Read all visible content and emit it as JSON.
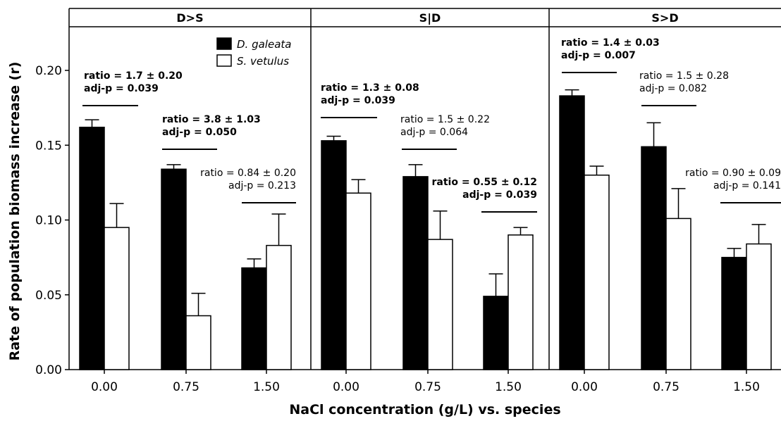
{
  "chart_data": {
    "type": "bar",
    "xlabel": "NaCl concentration (g/L) vs. species",
    "ylabel": "Rate of population biomass increase (r)",
    "ylim": [
      0,
      0.24
    ],
    "yticks": [
      "0.00",
      "0.05",
      "0.10",
      "0.15",
      "0.20"
    ],
    "ytick_values": [
      0,
      0.05,
      0.1,
      0.15,
      0.2
    ],
    "grid": false,
    "legend_position": "top-left of first panel",
    "series": [
      {
        "name": "D. galeata",
        "color": "#000000"
      },
      {
        "name": "S. vetulus",
        "color": "#ffffff"
      }
    ],
    "panels": [
      {
        "title": "D>S",
        "groups": [
          {
            "category": "0.00",
            "values": [
              0.162,
              0.095
            ],
            "errors": [
              0.005,
              0.016
            ],
            "ratio": "ratio = 1.7 ± 0.20",
            "pval": "adj-p = 0.039",
            "bold": true
          },
          {
            "category": "0.75",
            "values": [
              0.134,
              0.036
            ],
            "errors": [
              0.003,
              0.015
            ],
            "ratio": "ratio = 3.8 ± 1.03",
            "pval": "adj-p = 0.050",
            "bold": true
          },
          {
            "category": "1.50",
            "values": [
              0.068,
              0.083
            ],
            "errors": [
              0.006,
              0.021
            ],
            "ratio": "ratio = 0.84 ± 0.20",
            "pval": "adj-p = 0.213",
            "bold": false
          }
        ]
      },
      {
        "title": "S|D",
        "groups": [
          {
            "category": "0.00",
            "values": [
              0.153,
              0.118
            ],
            "errors": [
              0.003,
              0.009
            ],
            "ratio": "ratio = 1.3 ± 0.08",
            "pval": "adj-p = 0.039",
            "bold": true
          },
          {
            "category": "0.75",
            "values": [
              0.129,
              0.087
            ],
            "errors": [
              0.008,
              0.019
            ],
            "ratio": "ratio = 1.5 ± 0.22",
            "pval": "adj-p = 0.064",
            "bold": false
          },
          {
            "category": "1.50",
            "values": [
              0.049,
              0.09
            ],
            "errors": [
              0.015,
              0.005
            ],
            "ratio": "ratio = 0.55 ± 0.12",
            "pval": "adj-p = 0.039",
            "bold": true
          }
        ]
      },
      {
        "title": "S>D",
        "groups": [
          {
            "category": "0.00",
            "values": [
              0.183,
              0.13
            ],
            "errors": [
              0.004,
              0.006
            ],
            "ratio": "ratio = 1.4 ± 0.03",
            "pval": "adj-p = 0.007",
            "bold": true
          },
          {
            "category": "0.75",
            "values": [
              0.149,
              0.101
            ],
            "errors": [
              0.016,
              0.02
            ],
            "ratio": "ratio = 1.5 ± 0.28",
            "pval": "adj-p = 0.082",
            "bold": false
          },
          {
            "category": "1.50",
            "values": [
              0.075,
              0.084
            ],
            "errors": [
              0.006,
              0.013
            ],
            "ratio": "ratio = 0.90 ± 0.09",
            "pval": "adj-p = 0.141",
            "bold": false
          }
        ]
      }
    ]
  }
}
